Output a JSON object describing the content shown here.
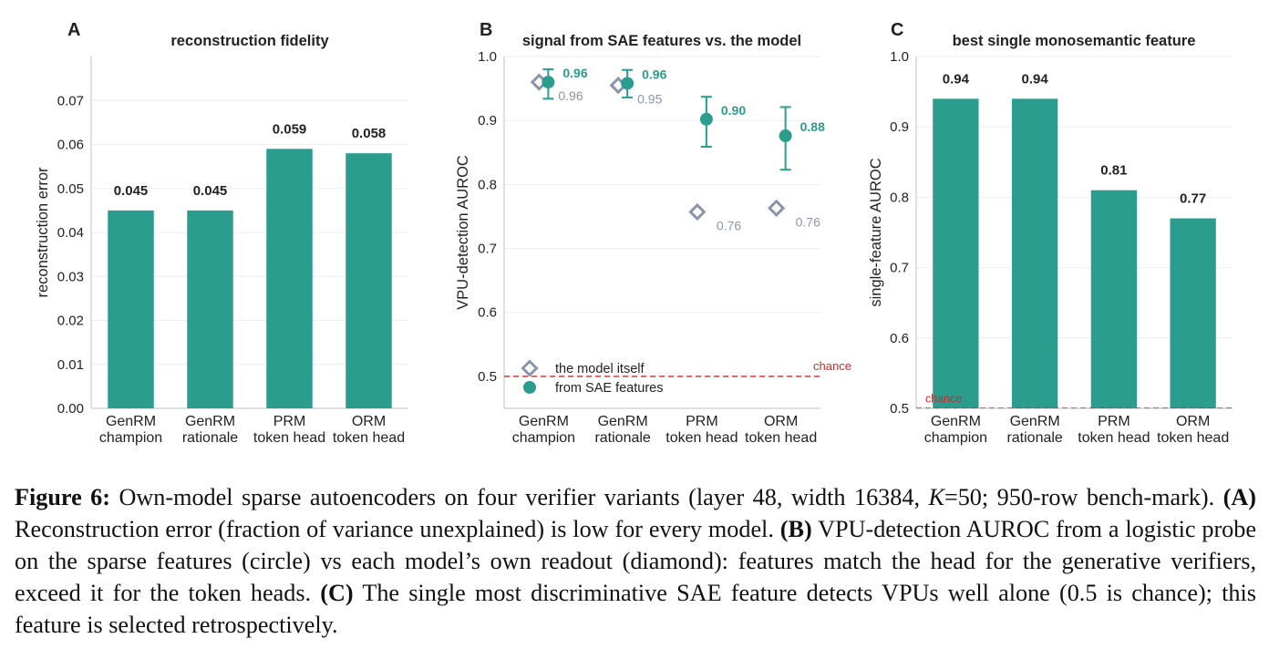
{
  "colors": {
    "teal": "#2a9d8f",
    "gray": "#8c95ab",
    "chance": "#d62728",
    "axis": "#c8ccd4",
    "grid": "#eceef2",
    "text": "#222222"
  },
  "chart_data": [
    {
      "type": "bar",
      "panel_letter": "A",
      "title": "reconstruction fidelity",
      "ylabel": "reconstruction error",
      "categories": [
        "GenRM\nchampion",
        "GenRM\nrationale",
        "PRM\ntoken head",
        "ORM\ntoken head"
      ],
      "values": [
        0.045,
        0.045,
        0.059,
        0.058
      ],
      "value_labels": [
        "0.045",
        "0.045",
        "0.059",
        "0.058"
      ],
      "ylim": [
        0,
        0.08
      ],
      "yticks": [
        0.0,
        0.01,
        0.02,
        0.03,
        0.04,
        0.05,
        0.06,
        0.07
      ],
      "ytick_labels": [
        "0.00",
        "0.01",
        "0.02",
        "0.03",
        "0.04",
        "0.05",
        "0.06",
        "0.07"
      ],
      "grid": true
    },
    {
      "type": "scatter",
      "panel_letter": "B",
      "title": "signal from SAE features vs. the model",
      "ylabel": "VPU-detection AUROC",
      "categories": [
        "GenRM\nchampion",
        "GenRM\nrationale",
        "PRM\ntoken head",
        "ORM\ntoken head"
      ],
      "series": [
        {
          "name": "the model itself",
          "marker": "diamond",
          "values": [
            0.96,
            0.955,
            0.757,
            0.763
          ],
          "value_labels": [
            "0.96",
            "0.95",
            "0.76",
            "0.76"
          ]
        },
        {
          "name": "from SAE features",
          "marker": "circle",
          "values": [
            0.96,
            0.958,
            0.902,
            0.876
          ],
          "err_low": [
            0.934,
            0.936,
            0.859,
            0.823
          ],
          "err_high": [
            0.98,
            0.979,
            0.937,
            0.921
          ],
          "value_labels": [
            "0.96",
            "0.96",
            "0.90",
            "0.88"
          ]
        }
      ],
      "chance_level": 0.5,
      "chance_label": "chance",
      "ylim": [
        0.45,
        1.0
      ],
      "yticks": [
        0.5,
        0.6,
        0.7,
        0.8,
        0.9,
        1.0
      ],
      "ytick_labels": [
        "0.5",
        "0.6",
        "0.7",
        "0.8",
        "0.9",
        "1.0"
      ],
      "legend_position": "bottom-left",
      "grid": true
    },
    {
      "type": "bar",
      "panel_letter": "C",
      "title": "best single monosemantic feature",
      "ylabel": "single-feature AUROC",
      "categories": [
        "GenRM\nchampion",
        "GenRM\nrationale",
        "PRM\ntoken head",
        "ORM\ntoken head"
      ],
      "values": [
        0.94,
        0.94,
        0.81,
        0.77
      ],
      "value_labels": [
        "0.94",
        "0.94",
        "0.81",
        "0.77"
      ],
      "chance_level": 0.5,
      "chance_label": "chance",
      "ylim": [
        0.5,
        1.0
      ],
      "yticks": [
        0.5,
        0.6,
        0.7,
        0.8,
        0.9,
        1.0
      ],
      "ytick_labels": [
        "0.5",
        "0.6",
        "0.7",
        "0.8",
        "0.9",
        "1.0"
      ],
      "grid": true
    }
  ],
  "caption": {
    "figure_label": "Figure 6:",
    "intro_1": " Own-model sparse autoencoders on four verifier variants (layer 48, width 16384, ",
    "k_symbol": "K",
    "intro_2": "=50; 950-row bench-mark). ",
    "a_label": "(A)",
    "a_text": " Reconstruction error (fraction of variance unexplained) is low for every model. ",
    "b_label": "(B)",
    "b_text": " VPU-detection AUROC from a logistic probe on the sparse features (circle) vs each model’s own readout (diamond): features match the head for the generative verifiers, exceed it for the token heads. ",
    "c_label": "(C)",
    "c_text": " The single most discriminative SAE feature detects VPUs well alone (0.5 is chance); this feature is selected retrospectively."
  }
}
